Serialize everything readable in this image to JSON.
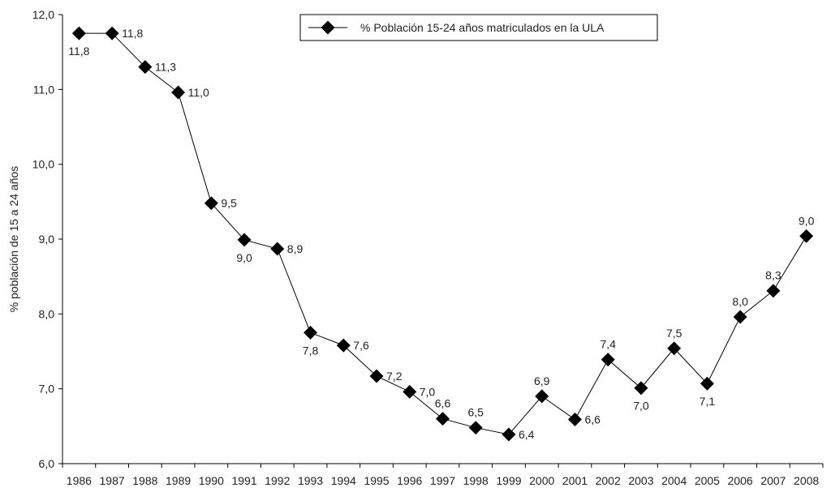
{
  "chart_data": {
    "type": "line",
    "ylabel": "% población de 15 a 24 años",
    "xlabel": "",
    "ylim": [
      6.0,
      12.0
    ],
    "yticks": [
      "6,0",
      "7,0",
      "8,0",
      "9,0",
      "10,0",
      "11,0",
      "12,0"
    ],
    "grid": false,
    "legend_position": "top-center",
    "categories": [
      "1986",
      "1987",
      "1988",
      "1989",
      "1990",
      "1991",
      "1992",
      "1993",
      "1994",
      "1995",
      "1996",
      "1997",
      "1998",
      "1999",
      "2000",
      "2001",
      "2002",
      "2003",
      "2004",
      "2005",
      "2006",
      "2007",
      "2008"
    ],
    "series": [
      {
        "name": "% Población 15-24 años matriculados  en la ULA",
        "values": [
          11.75,
          11.75,
          11.3,
          10.96,
          9.48,
          8.99,
          8.87,
          7.75,
          7.58,
          7.17,
          6.96,
          6.6,
          6.48,
          6.39,
          6.9,
          6.59,
          7.39,
          7.01,
          7.54,
          7.07,
          7.96,
          8.31,
          9.04
        ],
        "labels": [
          "11,8",
          "11,8",
          "11,3",
          "11,0",
          "9,5",
          "9,0",
          "8,9",
          "7,8",
          "7,6",
          "7,2",
          "7,0",
          "6,6",
          "6,5",
          "6,4",
          "6,9",
          "6,6",
          "7,4",
          "7,0",
          "7,5",
          "7,1",
          "8,0",
          "8,3",
          "9,0"
        ],
        "label_positions": [
          "below",
          "right",
          "right",
          "right",
          "right",
          "below",
          "right",
          "below",
          "right",
          "right",
          "right",
          "above",
          "above",
          "right",
          "above",
          "right",
          "above",
          "below",
          "above",
          "below",
          "above",
          "above",
          "above"
        ],
        "color": "#000000",
        "marker": "diamond"
      }
    ]
  }
}
